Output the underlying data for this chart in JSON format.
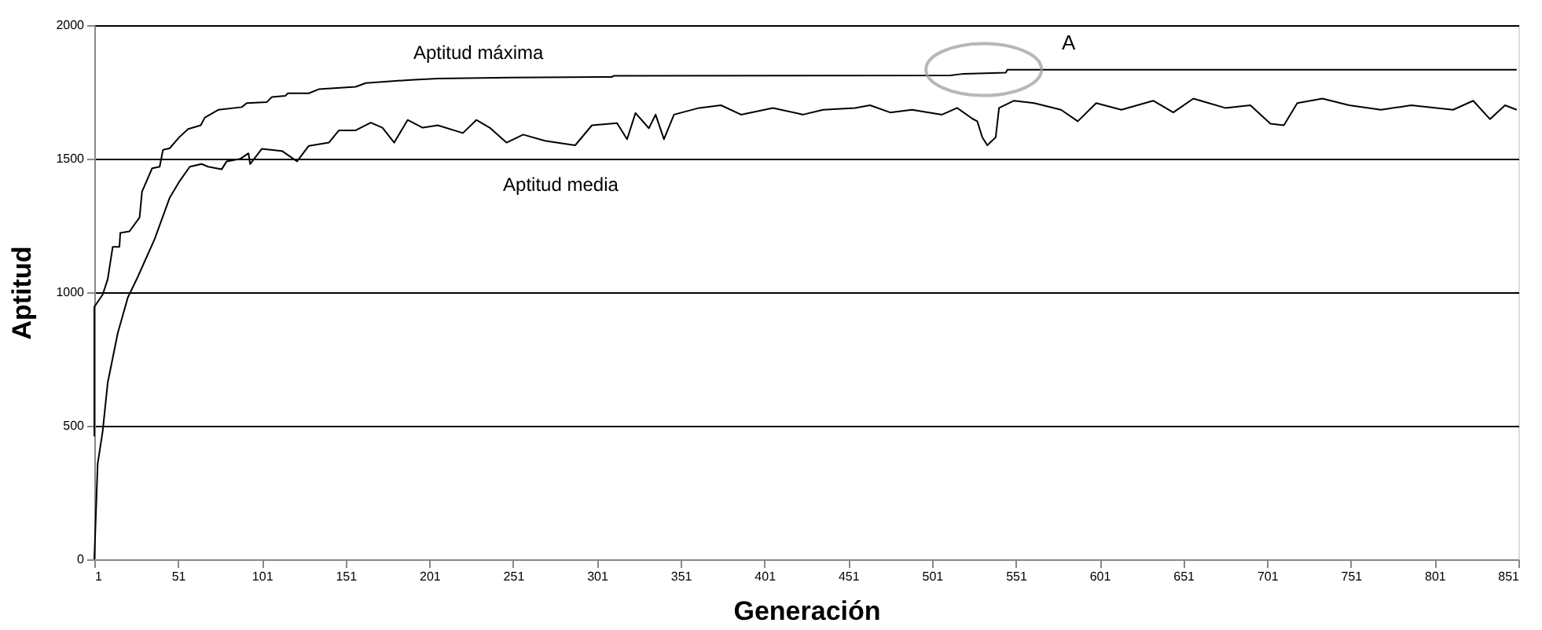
{
  "chart_data": {
    "type": "line",
    "xlabel": "Generación",
    "ylabel": "Aptitud",
    "xlim": [
      1,
      851
    ],
    "xticks": [
      1,
      51,
      101,
      151,
      201,
      251,
      301,
      351,
      401,
      451,
      501,
      551,
      601,
      651,
      701,
      751,
      801,
      851
    ],
    "ylim": [
      0,
      2000
    ],
    "yticks": [
      0,
      500,
      1000,
      1500,
      2000
    ],
    "grid": "y",
    "marker": "none",
    "line_style": "solid",
    "annotations": [
      "A"
    ],
    "series": [
      {
        "name": "Aptitud máxima",
        "color": "#000000",
        "x": [
          1,
          1,
          6,
          9,
          12,
          16,
          16.5,
          22,
          28,
          29.5,
          35.5,
          40,
          42,
          46,
          51.5,
          57,
          64.5,
          67,
          75,
          89,
          92,
          104,
          107,
          115,
          116.5,
          129,
          135,
          157,
          163,
          190,
          206,
          249,
          310,
          311,
          512,
          520,
          545,
          546,
          850
        ],
        "values": [
          460,
          945,
          991,
          1049,
          1170,
          1170,
          1222,
          1228,
          1280,
          1377,
          1464,
          1470,
          1533,
          1539,
          1579,
          1611,
          1625,
          1654,
          1683,
          1693,
          1708,
          1712,
          1731,
          1735,
          1745,
          1745,
          1760,
          1769,
          1783,
          1795,
          1800,
          1804,
          1806,
          1810,
          1812,
          1818,
          1822,
          1833,
          1833
        ]
      },
      {
        "name": "Aptitud media",
        "color": "#000000",
        "x": [
          1,
          3,
          6,
          9,
          15,
          21,
          27,
          37,
          46,
          51.5,
          58,
          65,
          69,
          77,
          80,
          88,
          93,
          94,
          101,
          113,
          122,
          129,
          141,
          147,
          157,
          166,
          173,
          180,
          188,
          197,
          206,
          221,
          229,
          237,
          247,
          257,
          270,
          288,
          298,
          313,
          319,
          324,
          332,
          336,
          341,
          347,
          362,
          375,
          387,
          406,
          424,
          436,
          455,
          464,
          476,
          489,
          507,
          516,
          525,
          528,
          531,
          534,
          539,
          541,
          550,
          562,
          578,
          588,
          599,
          614,
          633,
          645,
          657,
          676,
          691,
          703,
          711,
          719,
          734,
          750,
          769,
          787,
          812,
          824,
          834,
          843,
          850
        ],
        "values": [
          0,
          357,
          480,
          661,
          847,
          980,
          1058,
          1199,
          1354,
          1412,
          1470,
          1480,
          1470,
          1460,
          1490,
          1499,
          1520,
          1480,
          1537,
          1529,
          1490,
          1548,
          1560,
          1606,
          1606,
          1635,
          1616,
          1560,
          1645,
          1616,
          1625,
          1596,
          1645,
          1616,
          1560,
          1590,
          1567,
          1550,
          1625,
          1633,
          1573,
          1671,
          1614,
          1665,
          1573,
          1665,
          1690,
          1700,
          1665,
          1690,
          1665,
          1683,
          1690,
          1700,
          1673,
          1683,
          1665,
          1690,
          1650,
          1640,
          1580,
          1550,
          1580,
          1690,
          1717,
          1708,
          1683,
          1640,
          1708,
          1683,
          1717,
          1673,
          1725,
          1690,
          1700,
          1631,
          1625,
          1708,
          1725,
          1700,
          1683,
          1700,
          1683,
          1717,
          1648,
          1700,
          1683
        ]
      }
    ]
  }
}
